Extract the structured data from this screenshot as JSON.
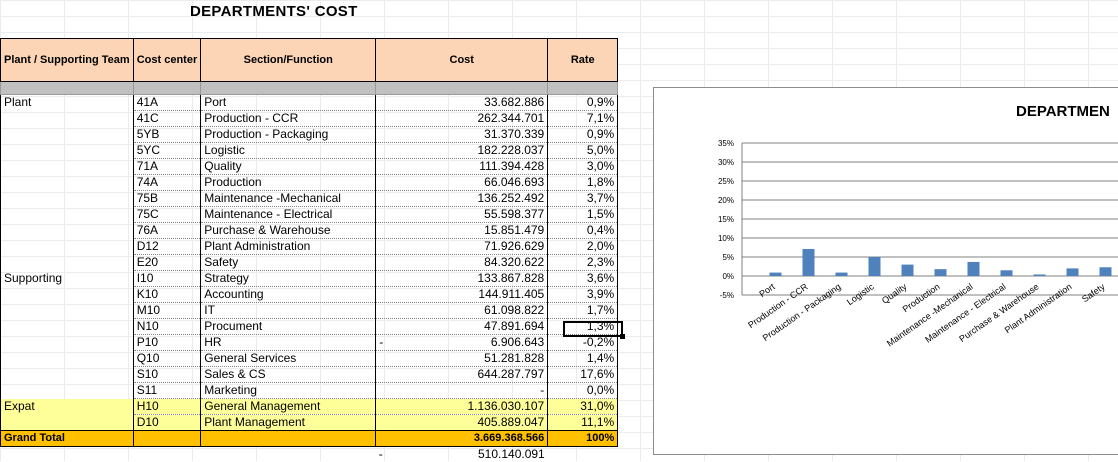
{
  "sheet": {
    "title": "DEPARTMENTS' COST",
    "headers": {
      "plant": "Plant / Supporting Team",
      "cost_center": "Cost center",
      "section": "Section/Function",
      "cost": "Cost",
      "rate": "Rate"
    },
    "rows": [
      {
        "group": "Plant",
        "cc": "41A",
        "section": "Port",
        "cost": "33.682.886",
        "rate": "0,9%",
        "minus": ""
      },
      {
        "group": "",
        "cc": "41C",
        "section": "Production - CCR",
        "cost": "262.344.701",
        "rate": "7,1%",
        "minus": ""
      },
      {
        "group": "",
        "cc": "5YB",
        "section": "Production - Packaging",
        "cost": "31.370.339",
        "rate": "0,9%",
        "minus": ""
      },
      {
        "group": "",
        "cc": "5YC",
        "section": "Logistic",
        "cost": "182.228.037",
        "rate": "5,0%",
        "minus": ""
      },
      {
        "group": "",
        "cc": "71A",
        "section": "Quality",
        "cost": "111.394.428",
        "rate": "3,0%",
        "minus": ""
      },
      {
        "group": "",
        "cc": "74A",
        "section": "Production",
        "cost": "66.046.693",
        "rate": "1,8%",
        "minus": ""
      },
      {
        "group": "",
        "cc": "75B",
        "section": "Maintenance -Mechanical",
        "cost": "136.252.492",
        "rate": "3,7%",
        "minus": ""
      },
      {
        "group": "",
        "cc": "75C",
        "section": "Maintenance - Electrical",
        "cost": "55.598.377",
        "rate": "1,5%",
        "minus": ""
      },
      {
        "group": "",
        "cc": "76A",
        "section": "Purchase & Warehouse",
        "cost": "15.851.479",
        "rate": "0,4%",
        "minus": ""
      },
      {
        "group": "",
        "cc": "D12",
        "section": "Plant Administration",
        "cost": "71.926.629",
        "rate": "2,0%",
        "minus": ""
      },
      {
        "group": "",
        "cc": "E20",
        "section": "Safety",
        "cost": "84.320.622",
        "rate": "2,3%",
        "minus": ""
      },
      {
        "group": "Supporting",
        "cc": "I10",
        "section": "Strategy",
        "cost": "133.867.828",
        "rate": "3,6%",
        "minus": ""
      },
      {
        "group": "",
        "cc": "K10",
        "section": "Accounting",
        "cost": "144.911.405",
        "rate": "3,9%",
        "minus": ""
      },
      {
        "group": "",
        "cc": "M10",
        "section": "IT",
        "cost": "61.098.822",
        "rate": "1,7%",
        "minus": ""
      },
      {
        "group": "",
        "cc": "N10",
        "section": "Procument",
        "cost": "47.891.694",
        "rate": "1,3%",
        "minus": ""
      },
      {
        "group": "",
        "cc": "P10",
        "section": "HR",
        "cost": "6.906.643",
        "rate": "-0,2%",
        "minus": "-"
      },
      {
        "group": "",
        "cc": "Q10",
        "section": "General Services",
        "cost": "51.281.828",
        "rate": "1,4%",
        "minus": ""
      },
      {
        "group": "",
        "cc": "S10",
        "section": "Sales & CS",
        "cost": "644.287.797",
        "rate": "17,6%",
        "minus": ""
      },
      {
        "group": "",
        "cc": "S11",
        "section": "Marketing",
        "cost": "-",
        "rate": "0,0%",
        "minus": ""
      }
    ],
    "expat_rows": [
      {
        "group": "Expat",
        "cc": "H10",
        "section": "General Management",
        "cost": "1.136.030.107",
        "rate": "31,0%"
      },
      {
        "group": "",
        "cc": "D10",
        "section": "Plant Management",
        "cost": "405.889.047",
        "rate": "11,1%"
      }
    ],
    "grand_total": {
      "label": "Grand Total",
      "cost": "3.669.368.566",
      "rate": "100%"
    },
    "below_total": {
      "minus": "-",
      "cost": "510.140.091"
    }
  },
  "chart_data": {
    "type": "bar",
    "title": "DEPARTMEN",
    "categories": [
      "Port",
      "Production - CCR",
      "Production - Packaging",
      "Logistic",
      "Quality",
      "Production",
      "Maintenance -Mechanical",
      "Maintenance - Electrical",
      "Purchase & Warehouse",
      "Plant Administration",
      "Safety"
    ],
    "values": [
      0.9,
      7.1,
      0.9,
      5.0,
      3.0,
      1.8,
      3.7,
      1.5,
      0.4,
      2.0,
      2.3
    ],
    "yticks": [
      "35%",
      "30%",
      "25%",
      "20%",
      "15%",
      "10%",
      "5%",
      "0%",
      "-5%"
    ],
    "ylim": [
      -5,
      35
    ],
    "grid": true,
    "bar_color": "#4f81bd"
  }
}
